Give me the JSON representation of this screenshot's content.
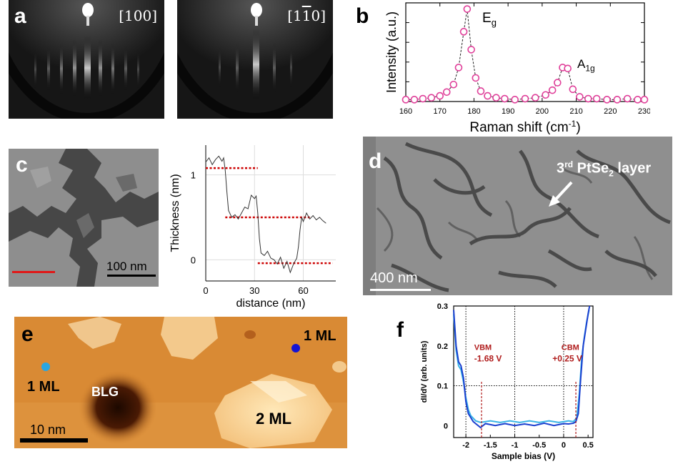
{
  "panels": {
    "a": {
      "letter": "a",
      "left_label": "[100]",
      "right_label": "[1",
      "right_label_bar": "1",
      "right_label_end": "0]"
    },
    "b": {
      "letter": "b",
      "peak1_base": "E",
      "peak1_sub": "g",
      "peak2_base": "A",
      "peak2_sub": "1g"
    },
    "c": {
      "letter": "c",
      "scale_text": "100 nm"
    },
    "d": {
      "letter": "d",
      "annotation_pre": "3",
      "annotation_sup": "rd",
      "annotation_mid": " PtSe",
      "annotation_sub": "2",
      "annotation_post": " layer",
      "scale_text": "400 nm"
    },
    "e": {
      "letter": "e",
      "label_1ml_left": "1 ML",
      "label_1ml_right": "1 ML",
      "label_blg": "BLG",
      "label_2ml": "2 ML",
      "scale_text": "10 nm"
    },
    "f": {
      "letter": "f",
      "vbm_title": "VBM",
      "vbm_value": "-1.68 V",
      "cbm_title": "CBM",
      "cbm_value": "+0.25 V"
    }
  },
  "colors": {
    "raman_marker": "#e0409a",
    "thickness_guides": "#cc0000",
    "stm_orange": "#d9862f",
    "marker_cyan": "#2aa6e0",
    "marker_blue": "#1414d4",
    "sts_line": "#1a3fcf",
    "sts_line_light": "#38b4e6",
    "annotation_red": "#b01c1c"
  },
  "chart_data": [
    {
      "type": "line",
      "panel": "b",
      "xlabel": "Raman shift (cm",
      "xlabel_sup": "-1",
      "xlabel_end": ")",
      "ylabel": "Intensity (a.u.)",
      "xlim": [
        160,
        230
      ],
      "xticks": [
        160,
        170,
        180,
        190,
        200,
        210,
        220,
        230
      ],
      "ylim": [
        0,
        1
      ],
      "x": [
        160,
        162.5,
        165,
        167.5,
        170,
        172,
        174,
        175.5,
        177,
        178,
        179.2,
        180.5,
        182,
        184,
        186.5,
        189,
        192,
        195,
        198,
        201,
        203,
        204.5,
        206,
        207.5,
        209,
        211,
        213.5,
        216,
        219,
        222,
        225,
        228,
        230
      ],
      "y": [
        0.02,
        0.02,
        0.03,
        0.04,
        0.06,
        0.1,
        0.18,
        0.36,
        0.74,
        0.98,
        0.55,
        0.25,
        0.11,
        0.06,
        0.04,
        0.03,
        0.02,
        0.03,
        0.04,
        0.07,
        0.12,
        0.2,
        0.36,
        0.35,
        0.13,
        0.05,
        0.03,
        0.03,
        0.02,
        0.02,
        0.03,
        0.02,
        0.02
      ]
    },
    {
      "type": "line",
      "panel": "c",
      "xlabel": "distance (nm)",
      "ylabel": "Thickness (nm)",
      "xlim": [
        0,
        80
      ],
      "xticks": [
        0,
        30,
        60
      ],
      "ylim": [
        -0.25,
        1.35
      ],
      "yticks": [
        0,
        1
      ],
      "x": [
        0,
        2,
        4,
        6,
        8,
        10,
        11,
        12,
        13,
        14,
        16,
        18,
        20,
        22,
        24,
        26,
        28,
        30,
        31,
        32,
        33,
        34,
        36,
        38,
        40,
        42,
        44,
        46,
        48,
        50,
        52,
        54,
        56,
        57,
        58,
        59,
        60,
        62,
        64,
        66,
        68,
        70,
        72,
        74
      ],
      "y": [
        1.15,
        1.2,
        1.12,
        1.18,
        1.22,
        1.16,
        1.2,
        1.05,
        0.8,
        0.58,
        0.5,
        0.53,
        0.48,
        0.55,
        0.62,
        0.6,
        0.76,
        0.72,
        0.75,
        0.55,
        0.25,
        0.08,
        0.05,
        0.1,
        0.02,
        0.0,
        -0.05,
        0.03,
        -0.1,
        -0.02,
        -0.15,
        -0.05,
        0.02,
        0.15,
        0.35,
        0.5,
        0.45,
        0.55,
        0.48,
        0.52,
        0.47,
        0.5,
        0.46,
        0.43
      ],
      "guide_levels": [
        {
          "y": 1.08,
          "x_range": [
            0,
            32
          ]
        },
        {
          "y": 0.5,
          "x_range": [
            12,
            64
          ]
        },
        {
          "y": -0.04,
          "x_range": [
            32,
            78
          ]
        }
      ]
    },
    {
      "type": "line",
      "panel": "f",
      "xlabel": "Sample bias (V)",
      "ylabel": "dI/dV (arb. units)",
      "xlim": [
        -2.25,
        0.6
      ],
      "xticks": [
        -2,
        -1.5,
        -1,
        -0.5,
        0,
        0.5
      ],
      "xtick_labels": [
        "-2",
        "-1.5",
        "-1",
        "-0.5",
        "0",
        "0.5"
      ],
      "ylim": [
        -0.03,
        0.3
      ],
      "yticks": [
        0,
        0.1,
        0.2,
        0.3
      ],
      "ytick_labels": [
        "0",
        "0.1",
        "0.2",
        "0.3"
      ],
      "series": [
        {
          "x": [
            -2.25,
            -2.2,
            -2.15,
            -2.1,
            -2.05,
            -2.0,
            -1.95,
            -1.9,
            -1.85,
            -1.8,
            -1.75,
            -1.7,
            -1.6,
            -1.4,
            -1.2,
            -1.0,
            -0.8,
            -0.6,
            -0.4,
            -0.2,
            0.0,
            0.1,
            0.2,
            0.25,
            0.3,
            0.35,
            0.4,
            0.45,
            0.5,
            0.53
          ],
          "y": [
            0.29,
            0.2,
            0.16,
            0.15,
            0.12,
            0.06,
            0.03,
            0.02,
            0.01,
            0.005,
            0.0,
            -0.005,
            0.005,
            0.0,
            0.005,
            0.0,
            0.004,
            0.0,
            0.006,
            0.0,
            0.005,
            0.004,
            0.006,
            0.01,
            0.03,
            0.12,
            0.2,
            0.24,
            0.28,
            0.3
          ]
        },
        {
          "x": [
            -2.25,
            -2.2,
            -2.15,
            -2.1,
            -2.05,
            -2.0,
            -1.95,
            -1.9,
            -1.8,
            -1.7,
            -1.5,
            -1.3,
            -1.1,
            -0.9,
            -0.7,
            -0.5,
            -0.3,
            -0.1,
            0.1,
            0.2,
            0.27,
            0.32,
            0.37,
            0.42,
            0.47,
            0.52
          ],
          "y": [
            0.28,
            0.19,
            0.15,
            0.14,
            0.11,
            0.07,
            0.04,
            0.025,
            0.012,
            0.008,
            0.012,
            0.008,
            0.012,
            0.008,
            0.012,
            0.008,
            0.012,
            0.008,
            0.012,
            0.01,
            0.02,
            0.08,
            0.17,
            0.22,
            0.26,
            0.29
          ]
        }
      ],
      "markers": [
        {
          "x": -1.68,
          "label": "VBM"
        },
        {
          "x": 0.25,
          "label": "CBM"
        }
      ]
    }
  ]
}
